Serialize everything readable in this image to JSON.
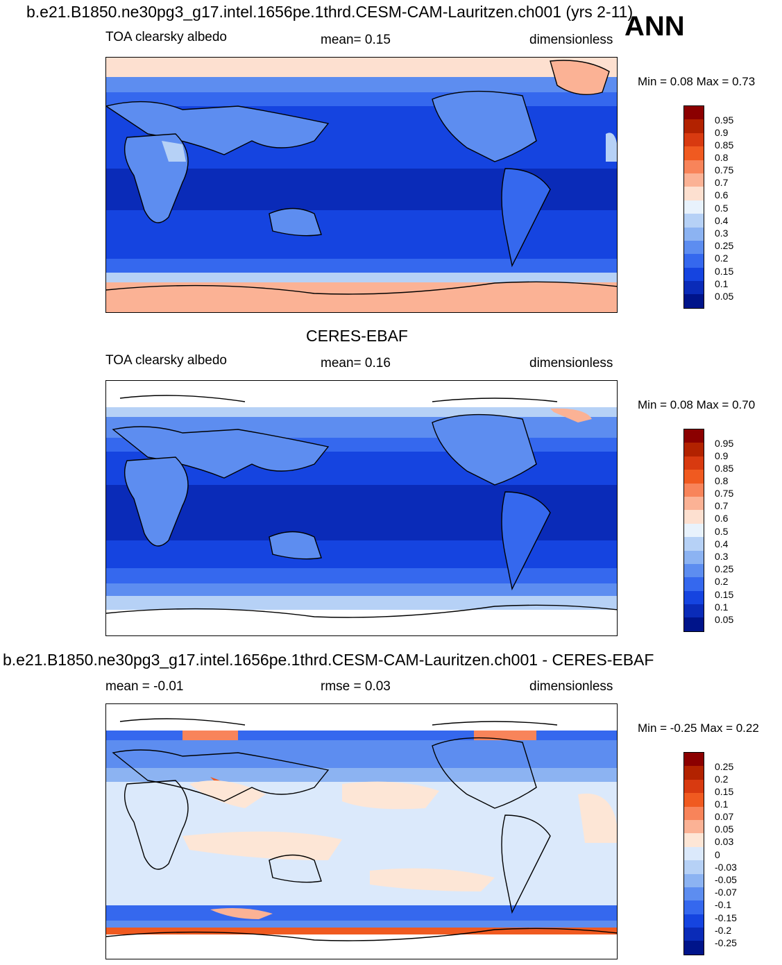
{
  "header": {
    "main_title": "b.e21.B1850.ne30pg3_g17.intel.1656pe.1thrd.CESM-CAM-Lauritzen.ch001 (yrs 2-11)",
    "season": "ANN",
    "obs_title": "CERES-EBAF",
    "diff_title": "b.e21.B1850.ne30pg3_g17.intel.1656pe.1thrd.CESM-CAM-Lauritzen.ch001 - CERES-EBAF"
  },
  "panels": [
    {
      "id": "model",
      "variable": "TOA clearsky albedo",
      "stat": "mean=   0.15",
      "units": "dimensionless",
      "minmax": "Min =   0.08 Max =   0.73",
      "colorbar": [
        "0.95",
        "0.9",
        "0.85",
        "0.8",
        "0.75",
        "0.7",
        "0.6",
        "0.5",
        "0.4",
        "0.3",
        "0.25",
        "0.2",
        "0.15",
        "0.1",
        "0.05"
      ]
    },
    {
      "id": "obs",
      "variable": "TOA clearsky albedo",
      "stat": "mean=   0.16",
      "units": "dimensionless",
      "minmax": "Min =   0.08 Max =   0.70",
      "colorbar": [
        "0.95",
        "0.9",
        "0.85",
        "0.8",
        "0.75",
        "0.7",
        "0.6",
        "0.5",
        "0.4",
        "0.3",
        "0.25",
        "0.2",
        "0.15",
        "0.1",
        "0.05"
      ]
    },
    {
      "id": "diff",
      "stat_left": "mean =   -0.01",
      "stat_mid": "rmse =    0.03",
      "units": "dimensionless",
      "minmax": "Min =  -0.25 Max =   0.22",
      "colorbar": [
        "0.25",
        "0.2",
        "0.15",
        "0.1",
        "0.07",
        "0.05",
        "0.03",
        "0",
        "-0.03",
        "-0.05",
        "-0.07",
        "-0.1",
        "-0.15",
        "-0.2",
        "-0.25"
      ]
    }
  ],
  "chart_data": [
    {
      "type": "heatmap",
      "title": "TOA clearsky albedo (model)",
      "subtitle": "mean= 0.15",
      "units": "dimensionless",
      "min": 0.08,
      "max": 0.73,
      "mean": 0.15,
      "levels": [
        0.05,
        0.1,
        0.15,
        0.2,
        0.25,
        0.3,
        0.4,
        0.5,
        0.6,
        0.7,
        0.75,
        0.8,
        0.85,
        0.9,
        0.95
      ]
    },
    {
      "type": "heatmap",
      "title": "TOA clearsky albedo (CERES-EBAF)",
      "subtitle": "mean= 0.16",
      "units": "dimensionless",
      "min": 0.08,
      "max": 0.7,
      "mean": 0.16,
      "levels": [
        0.05,
        0.1,
        0.15,
        0.2,
        0.25,
        0.3,
        0.4,
        0.5,
        0.6,
        0.7,
        0.75,
        0.8,
        0.85,
        0.9,
        0.95
      ]
    },
    {
      "type": "heatmap",
      "title": "model - CERES-EBAF",
      "units": "dimensionless",
      "min": -0.25,
      "max": 0.22,
      "mean": -0.01,
      "rmse": 0.03,
      "levels": [
        -0.25,
        -0.2,
        -0.15,
        -0.1,
        -0.07,
        -0.05,
        -0.03,
        0,
        0.03,
        0.05,
        0.07,
        0.1,
        0.15,
        0.2,
        0.25
      ]
    }
  ],
  "colors": {
    "abs_scale": [
      "#8b0000",
      "#b22200",
      "#d83a10",
      "#f05a20",
      "#f8845a",
      "#fbb295",
      "#fde0d0",
      "#e8f2fc",
      "#b6d1f6",
      "#8cb3f2",
      "#5d8df0",
      "#3568ee",
      "#1544e0",
      "#0a2bb8",
      "#00148a"
    ],
    "diff_scale": [
      "#8b0000",
      "#b22200",
      "#d83a10",
      "#f05a20",
      "#f8845a",
      "#fbb295",
      "#fde6d6",
      "#dbe9fb",
      "#b6d1f6",
      "#8cb3f2",
      "#5d8df0",
      "#3568ee",
      "#1544e0",
      "#0a2bb8",
      "#00148a"
    ]
  }
}
